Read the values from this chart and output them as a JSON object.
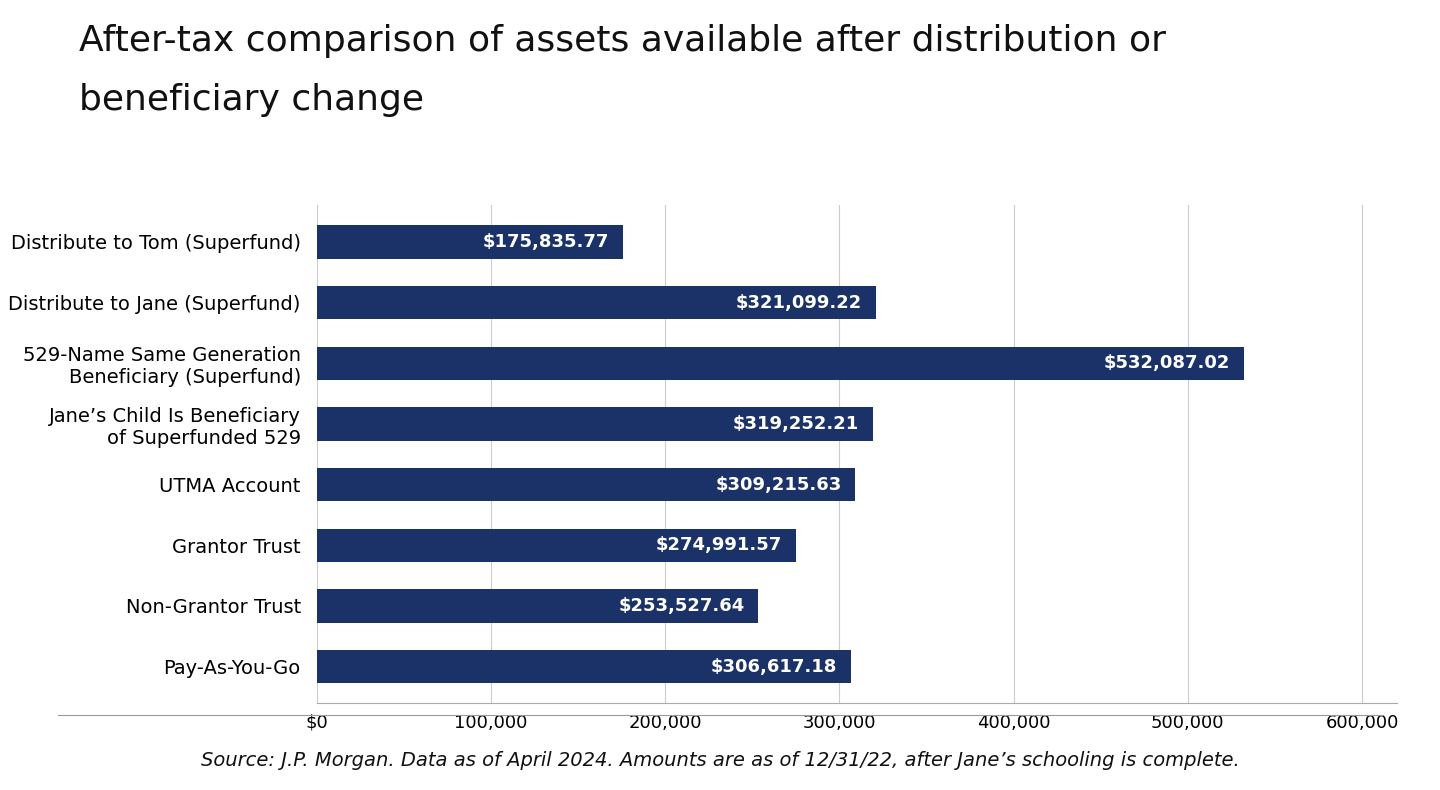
{
  "title_line1": "After-tax comparison of assets available after distribution or",
  "title_line2": "beneficiary change",
  "categories": [
    "Distribute to Tom (Superfund)",
    "Distribute to Jane (Superfund)",
    "529-Name Same Generation\nBeneficiary (Superfund)",
    "Jane’s Child Is Beneficiary\nof Superfunded 529",
    "UTMA Account",
    "Grantor Trust",
    "Non-Grantor Trust",
    "Pay-As-You-Go"
  ],
  "values": [
    175835.77,
    321099.22,
    532087.02,
    319252.21,
    309215.63,
    274991.57,
    253527.64,
    306617.18
  ],
  "labels": [
    "$175,835.77",
    "$321,099.22",
    "$532,087.02",
    "$319,252.21",
    "$309,215.63",
    "$274,991.57",
    "$253,527.64",
    "$306,617.18"
  ],
  "bar_color": "#1a3268",
  "background_color": "#ffffff",
  "title_fontsize": 26,
  "label_fontsize": 14,
  "tick_fontsize": 13,
  "bar_label_fontsize": 13,
  "footer_text": "Source: J.P. Morgan. Data as of April 2024. Amounts are as of 12/31/22, after Jane’s schooling is complete.",
  "footer_fontsize": 14,
  "xlim": [
    0,
    620000
  ],
  "xticks": [
    0,
    100000,
    200000,
    300000,
    400000,
    500000,
    600000
  ],
  "xticklabels": [
    "$0",
    "100,000",
    "200,000",
    "300,000",
    "400,000",
    "500,000",
    "600,000"
  ]
}
